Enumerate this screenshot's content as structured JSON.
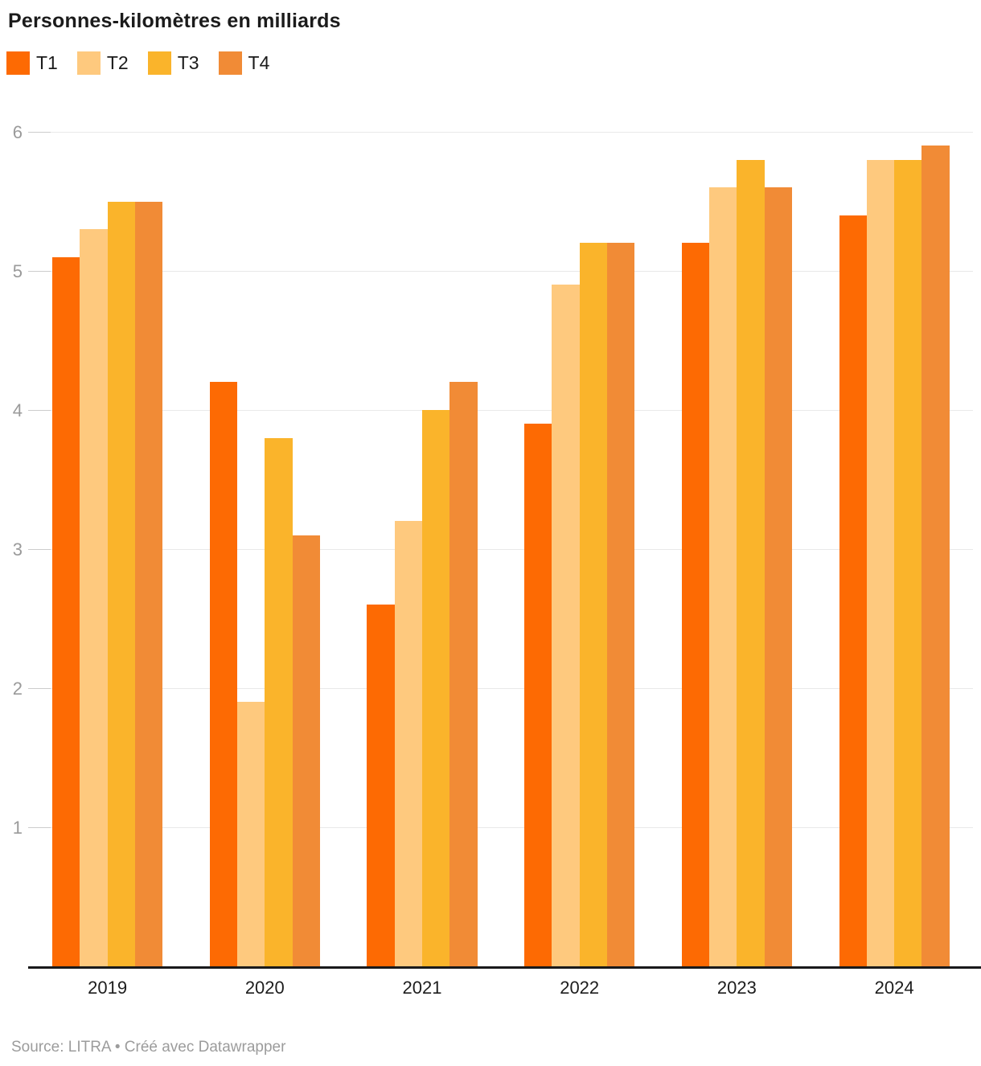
{
  "title": "Personnes-kilomètres en milliards",
  "footer": "Source: LITRA • Créé avec Datawrapper",
  "colors": {
    "t1": "#fd6a03",
    "t2": "#fec97e",
    "t3": "#fab42b",
    "t4": "#f18b36",
    "gridline": "#e9e9e9",
    "axis_line": "#19191b",
    "y_label": "#9a9a9a",
    "x_label": "#1d1d1d"
  },
  "chart_data": {
    "type": "bar",
    "title": "Personnes-kilomètres en milliards",
    "categories": [
      "2019",
      "2020",
      "2021",
      "2022",
      "2023",
      "2024"
    ],
    "series": [
      {
        "name": "T1",
        "color": "#fd6a03",
        "values": [
          5.1,
          4.2,
          2.6,
          3.9,
          5.2,
          5.4
        ]
      },
      {
        "name": "T2",
        "color": "#fec97e",
        "values": [
          5.3,
          1.9,
          3.2,
          4.9,
          5.6,
          5.8
        ]
      },
      {
        "name": "T3",
        "color": "#fab42b",
        "values": [
          5.5,
          3.8,
          4.0,
          5.2,
          5.8,
          5.8
        ]
      },
      {
        "name": "T4",
        "color": "#f18b36",
        "values": [
          5.5,
          3.1,
          4.2,
          5.2,
          5.6,
          5.9
        ]
      }
    ],
    "xlabel": "",
    "ylabel": "",
    "ylim": [
      0,
      6
    ],
    "yticks": [
      1,
      2,
      3,
      4,
      5,
      6
    ],
    "grid": true,
    "legend_position": "top",
    "source": "Source: LITRA • Créé avec Datawrapper"
  }
}
